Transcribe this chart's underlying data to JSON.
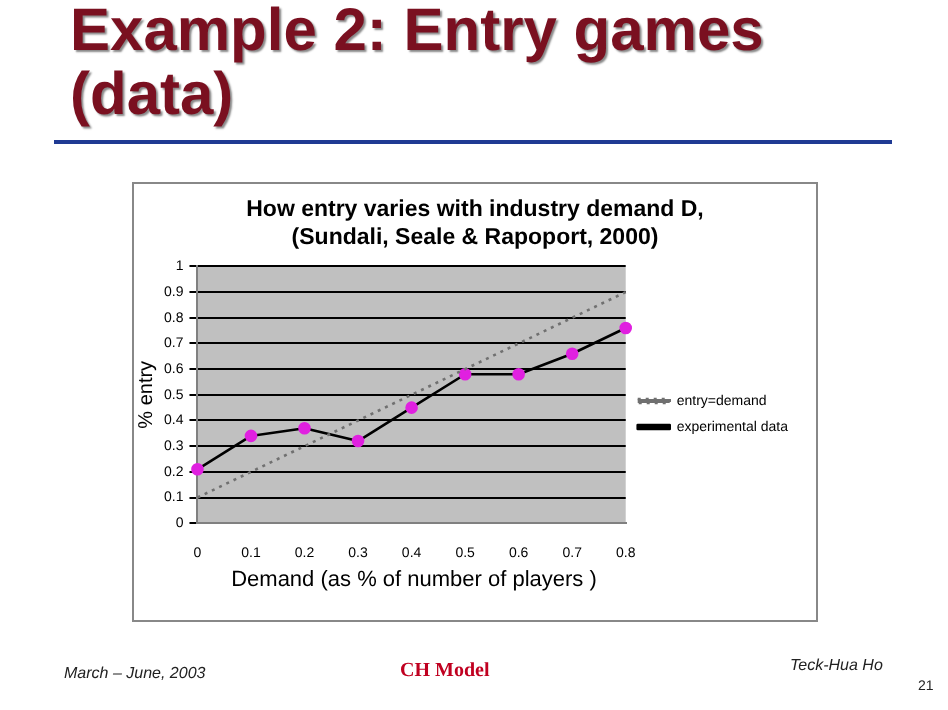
{
  "chart_data": {
    "type": "line",
    "title": "Example 2: Entry games (data)",
    "subtitle": "How entry varies with industry demand D, (Sundali, Seale & Rapoport, 2000)",
    "xlabel": "Demand  (as % of number of players )",
    "ylabel": "% entry",
    "categories": [
      "0",
      "0.1",
      "0.2",
      "0.3",
      "0.4",
      "0.5",
      "0.6",
      "0.7",
      "0.8"
    ],
    "series": [
      {
        "name": "entry=demand",
        "color": "#707070",
        "line_style": "dotted",
        "marker": "none",
        "values": [
          0.1,
          0.2,
          0.3,
          0.4,
          0.5,
          0.6,
          0.7,
          0.8,
          0.9
        ]
      },
      {
        "name": "experimental data",
        "color": "#000000",
        "line_style": "solid",
        "marker": "circle",
        "values": [
          0.21,
          0.34,
          0.37,
          0.32,
          0.45,
          0.58,
          0.58,
          0.66,
          0.76
        ]
      }
    ],
    "ylim": [
      0,
      1
    ],
    "yticks": [
      0,
      0.1,
      0.2,
      0.3,
      0.4,
      0.5,
      0.6,
      0.7,
      0.8,
      0.9,
      1
    ],
    "grid": "y",
    "legend": "right",
    "annotations": [
      "March – June, 2003",
      "CH Model",
      "Teck-Hua Ho",
      "21"
    ]
  }
}
